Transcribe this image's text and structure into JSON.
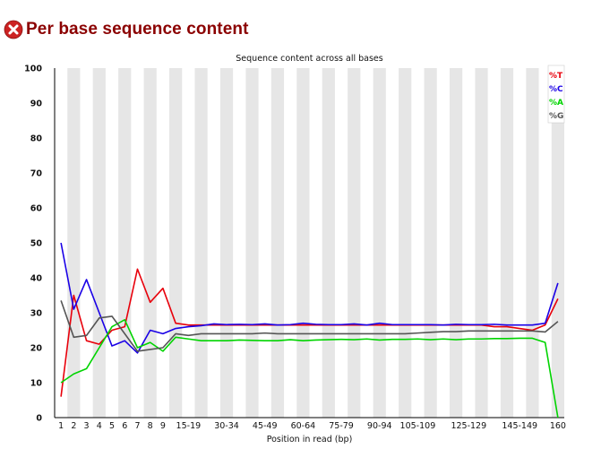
{
  "header": {
    "title": "Per base sequence content",
    "status_icon": "error-icon"
  },
  "colors": {
    "title": "#8b0000",
    "error_icon": "#cc2222",
    "band": "#e6e6e6",
    "T": "#e8000b",
    "C": "#1a00e6",
    "A": "#00d400",
    "G": "#555555"
  },
  "chart_data": {
    "type": "line",
    "title": "Sequence content across all bases",
    "xlabel": "Position in read (bp)",
    "ylabel": "",
    "ylim": [
      0,
      100
    ],
    "yticks": [
      0,
      10,
      20,
      30,
      40,
      50,
      60,
      70,
      80,
      90,
      100
    ],
    "grid": "alternating vertical bands",
    "legend_position": "top-right",
    "categories": [
      "1",
      "2",
      "3",
      "4",
      "5",
      "6",
      "7",
      "8",
      "9",
      "10-14",
      "15-19",
      "20-24",
      "25-29",
      "30-34",
      "35-39",
      "40-44",
      "45-49",
      "50-54",
      "55-59",
      "60-64",
      "65-69",
      "70-74",
      "75-79",
      "80-84",
      "85-89",
      "90-94",
      "95-99",
      "100-104",
      "105-109",
      "110-114",
      "115-119",
      "120-124",
      "125-129",
      "130-134",
      "135-139",
      "140-144",
      "145-149",
      "150-154",
      "155-159",
      "160"
    ],
    "x_tick_labels": [
      "1",
      "2",
      "3",
      "4",
      "5",
      "6",
      "7",
      "8",
      "9",
      "15-19",
      "30-34",
      "45-49",
      "60-64",
      "75-79",
      "90-94",
      "105-109",
      "125-129",
      "145-149",
      "160"
    ],
    "series": [
      {
        "name": "%T",
        "color": "#e8000b",
        "values": [
          6,
          35,
          22,
          21,
          25,
          26,
          42.5,
          33,
          37,
          27,
          26.5,
          26.5,
          26.5,
          26.5,
          26.5,
          26.5,
          26.5,
          26.5,
          26.5,
          26.5,
          26.5,
          26.5,
          26.5,
          26.5,
          26.5,
          26.5,
          26.5,
          26.5,
          26.5,
          26.5,
          26.5,
          26.5,
          26.5,
          26.5,
          26,
          26,
          25.5,
          25,
          26.5,
          34
        ]
      },
      {
        "name": "%C",
        "color": "#1a00e6",
        "values": [
          50,
          31,
          39.5,
          30,
          20.5,
          22,
          18.5,
          25,
          24,
          25.5,
          26,
          26.3,
          26.8,
          26.6,
          26.7,
          26.6,
          26.8,
          26.5,
          26.6,
          27,
          26.7,
          26.6,
          26.6,
          26.8,
          26.5,
          27,
          26.6,
          26.6,
          26.6,
          26.6,
          26.5,
          26.7,
          26.6,
          26.6,
          26.7,
          26.5,
          26.5,
          26.5,
          27,
          38.5
        ]
      },
      {
        "name": "%A",
        "color": "#00d400",
        "values": [
          10,
          12.5,
          14,
          20,
          26,
          28,
          20,
          21.5,
          19,
          23,
          22.5,
          22,
          22,
          22,
          22.2,
          22.1,
          22,
          22,
          22.3,
          22,
          22.2,
          22.3,
          22.4,
          22.3,
          22.5,
          22.2,
          22.4,
          22.4,
          22.5,
          22.3,
          22.5,
          22.3,
          22.5,
          22.5,
          22.6,
          22.6,
          22.7,
          22.7,
          21.5,
          0
        ]
      },
      {
        "name": "%G",
        "color": "#555555",
        "values": [
          33.5,
          23,
          23.5,
          28.5,
          29,
          24,
          19,
          19.5,
          20,
          24,
          23.5,
          24,
          24,
          24,
          24,
          24,
          24.2,
          24,
          24,
          24,
          24,
          24,
          24,
          24,
          24,
          24,
          24,
          24,
          24.2,
          24.4,
          24.6,
          24.6,
          24.8,
          24.8,
          24.8,
          24.8,
          24.8,
          24.8,
          24.5,
          27.5
        ]
      }
    ]
  }
}
